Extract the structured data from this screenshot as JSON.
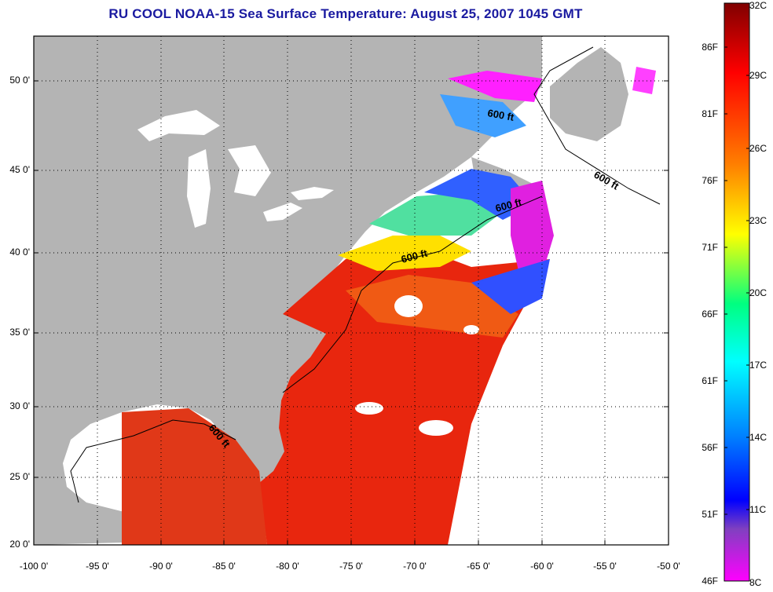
{
  "title": "RU COOL  NOAA-15  Sea Surface Temperature:  August 25, 2007 1045 GMT",
  "map": {
    "lat_ticks": [
      "50 0'",
      "45 0'",
      "40 0'",
      "35 0'",
      "30 0'",
      "25 0'",
      "20 0'"
    ],
    "lon_ticks": [
      "-100 0'",
      "-95 0'",
      "-90 0'",
      "-85 0'",
      "-80 0'",
      "-75 0'",
      "-70 0'",
      "-65 0'",
      "-60 0'",
      "-55 0'",
      "-50 0'"
    ],
    "contour_labels": [
      "600 ft",
      "600 ft",
      "600 ft",
      "600 ft",
      "600 ft"
    ],
    "colors": {
      "land": "#b4b4b4",
      "no_data": "#ffffff",
      "lakes": "#ffffff"
    }
  },
  "colorbar": {
    "fahrenheit": [
      "86F",
      "81F",
      "76F",
      "71F",
      "66F",
      "61F",
      "56F",
      "51F",
      "46F"
    ],
    "celsius": [
      "32C",
      "29C",
      "26C",
      "23C",
      "20C",
      "17C",
      "14C",
      "11C",
      "8C"
    ],
    "gradient": [
      "#800000",
      "#ff0000",
      "#ff8000",
      "#ffff00",
      "#00ff80",
      "#00ffff",
      "#0080ff",
      "#0000ff",
      "#8040c0",
      "#ff00ff"
    ]
  }
}
